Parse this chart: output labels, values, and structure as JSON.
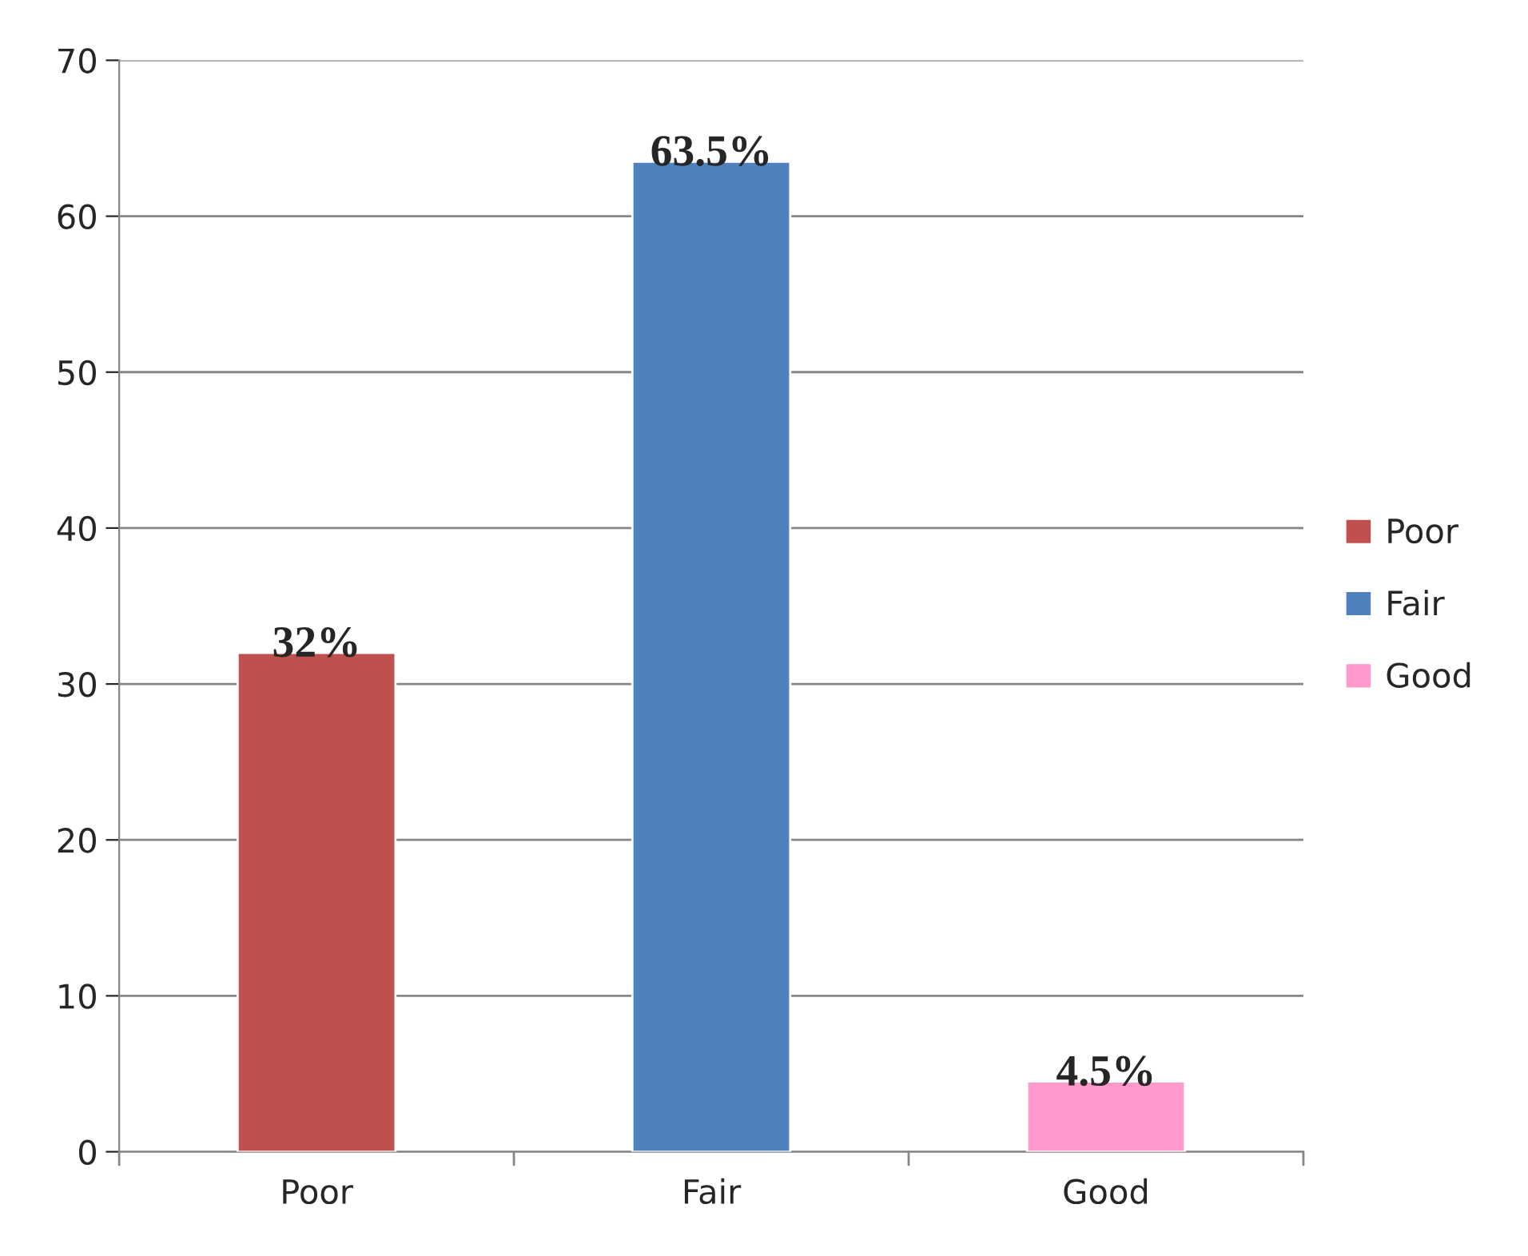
{
  "chart_data": {
    "type": "bar",
    "categories": [
      "Poor",
      "Fair",
      "Good"
    ],
    "series": [
      {
        "name": "Poor",
        "color": "#c0504d",
        "values": [
          32,
          null,
          null
        ],
        "value_labels": [
          "32%",
          null,
          null
        ]
      },
      {
        "name": "Fair",
        "color": "#4f81bd",
        "values": [
          null,
          63.5,
          null
        ],
        "value_labels": [
          null,
          "63.5%",
          null
        ]
      },
      {
        "name": "Good",
        "color": "#ff99cc",
        "values": [
          null,
          null,
          4.5
        ],
        "value_labels": [
          null,
          null,
          "4.5%"
        ]
      }
    ],
    "stacked": true,
    "ylim": [
      0,
      70
    ],
    "yticks": [
      0,
      10,
      20,
      30,
      40,
      50,
      60,
      70
    ],
    "grid": "y",
    "legend": "right"
  }
}
